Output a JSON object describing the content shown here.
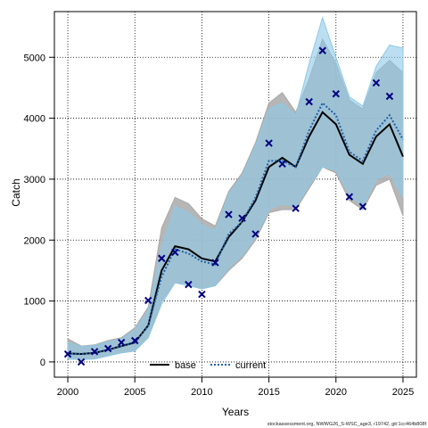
{
  "chart_data": {
    "type": "line",
    "title": "",
    "xlabel": "Years",
    "ylabel": "Catch",
    "xlim": [
      1999,
      2026
    ],
    "ylim": [
      -250,
      5750
    ],
    "xticks": [
      2000,
      2005,
      2010,
      2015,
      2020,
      2025
    ],
    "yticks": [
      0,
      1000,
      2000,
      3000,
      4000,
      5000
    ],
    "grid": true,
    "legend_position": "bottom-center",
    "years": [
      2000,
      2001,
      2002,
      2003,
      2004,
      2005,
      2006,
      2007,
      2008,
      2009,
      2010,
      2011,
      2012,
      2013,
      2014,
      2015,
      2016,
      2017,
      2018,
      2019,
      2020,
      2021,
      2022,
      2023,
      2024,
      2025
    ],
    "series": [
      {
        "name": "base",
        "color": "#000000",
        "line_style": "solid",
        "band_color": "#a9a9a9",
        "median": [
          140,
          130,
          150,
          200,
          260,
          320,
          600,
          1500,
          1900,
          1850,
          1700,
          1650,
          2050,
          2300,
          2650,
          3200,
          3350,
          3200,
          3700,
          4100,
          3900,
          3400,
          3250,
          3700,
          3900,
          3370
        ],
        "lower": [
          50,
          40,
          50,
          100,
          150,
          180,
          400,
          1000,
          1300,
          1280,
          1200,
          1250,
          1500,
          1700,
          2000,
          2450,
          2500,
          2500,
          2850,
          3200,
          3100,
          2650,
          2500,
          2900,
          3000,
          2400
        ],
        "upper": [
          380,
          260,
          280,
          350,
          400,
          560,
          900,
          2200,
          2700,
          2600,
          2350,
          2230,
          2800,
          3100,
          3600,
          4250,
          4420,
          4100,
          4650,
          5300,
          4900,
          4300,
          4150,
          4750,
          4950,
          4750
        ]
      },
      {
        "name": "current",
        "color": "#1f5fa8",
        "line_style": "dotted",
        "band_color": "#8ec9e8",
        "median": [
          140,
          130,
          150,
          200,
          260,
          320,
          600,
          1400,
          1850,
          1780,
          1650,
          1600,
          2100,
          2300,
          2700,
          3300,
          3300,
          3200,
          3800,
          4250,
          4050,
          3450,
          3300,
          3800,
          4050,
          3650
        ],
        "lower": [
          50,
          40,
          50,
          100,
          150,
          180,
          400,
          950,
          1300,
          1250,
          1200,
          1250,
          1550,
          1750,
          2050,
          2500,
          2600,
          2550,
          2900,
          3200,
          3150,
          2750,
          2550,
          3000,
          3100,
          2700
        ],
        "upper": [
          320,
          250,
          270,
          330,
          380,
          520,
          850,
          1900,
          2550,
          2450,
          2250,
          2150,
          2750,
          3050,
          3550,
          4150,
          4250,
          4050,
          4900,
          5650,
          5000,
          4350,
          4200,
          4850,
          5200,
          5150
        ]
      }
    ],
    "observed": {
      "marker": "x",
      "color": "#000080",
      "x": [
        2000,
        2001,
        2002,
        2003,
        2004,
        2005,
        2006,
        2007,
        2008,
        2009,
        2010,
        2011,
        2012,
        2013,
        2014,
        2015,
        2016,
        2017,
        2018,
        2019,
        2020,
        2021,
        2022,
        2023,
        2024
      ],
      "y": [
        130,
        0,
        170,
        220,
        320,
        350,
        1010,
        1700,
        1800,
        1270,
        1110,
        1630,
        2420,
        2360,
        2100,
        3590,
        3250,
        2520,
        4270,
        5110,
        4400,
        2710,
        2550,
        4580,
        4360
      ]
    },
    "footer": "stockassessment.org, NWWG26_S-WSC_age3, r19742, git:1cc464b808f"
  }
}
